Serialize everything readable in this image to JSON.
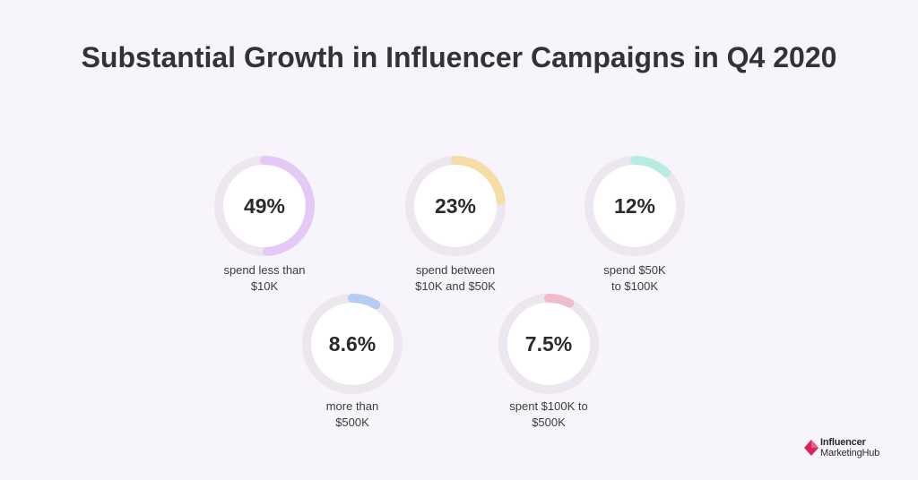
{
  "chart_data": {
    "type": "pie",
    "title": "Substantial Growth in Influencer Campaigns in Q4 2020",
    "items": [
      {
        "value": 49,
        "value_label": "49%",
        "caption_lines": [
          "spend less than",
          "$10K"
        ],
        "color": "#e2c9f6"
      },
      {
        "value": 23,
        "value_label": "23%",
        "caption_lines": [
          "spend between",
          "$10K and $50K"
        ],
        "color": "#f8dca6"
      },
      {
        "value": 12,
        "value_label": "12%",
        "caption_lines": [
          "spend $50K",
          "to $100K"
        ],
        "color": "#b6ece1"
      },
      {
        "value": 8.6,
        "value_label": "8.6%",
        "caption_lines": [
          "more than",
          "$500K"
        ],
        "color": "#b5cdf2"
      },
      {
        "value": 7.5,
        "value_label": "7.5%",
        "caption_lines": [
          "spent $100K to",
          "$500K"
        ],
        "color": "#efbccb"
      }
    ],
    "track_color": "#ece7ef"
  },
  "logo": {
    "line1": "Influencer",
    "line2": "MarketingHub",
    "color": "#d8245e"
  }
}
